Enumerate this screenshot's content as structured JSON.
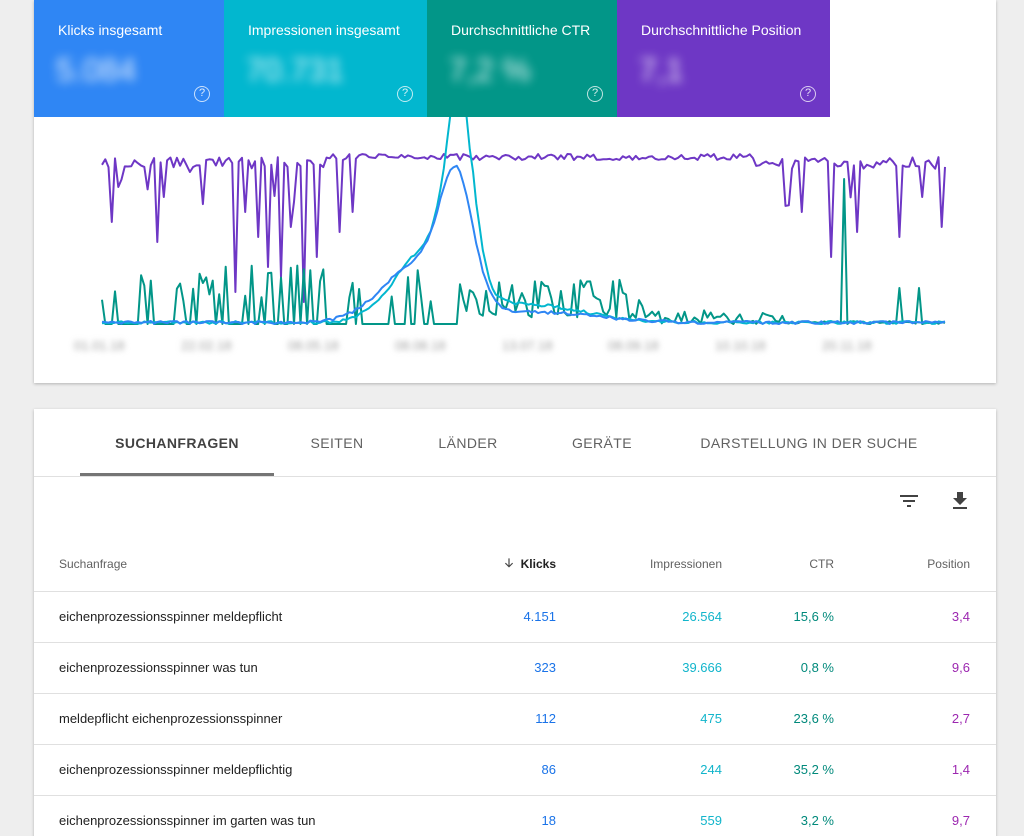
{
  "metrics": [
    {
      "label": "Klicks insgesamt",
      "value": "5.084",
      "color": "#2f86f4",
      "help": "?"
    },
    {
      "label": "Impressionen insgesamt",
      "value": "70.731",
      "color": "#02b7cf",
      "help": "?"
    },
    {
      "label": "Durchschnittliche CTR",
      "value": "7,2 %",
      "color": "#029688",
      "help": "?"
    },
    {
      "label": "Durchschnittliche Position",
      "value": "7,1",
      "color": "#6e37c5",
      "help": "?"
    }
  ],
  "chart_data": {
    "type": "line",
    "x_ticks": [
      "01.01.18",
      "22.02.18",
      "08.05.18",
      "08.08.18",
      "13.07.18",
      "08.09.18",
      "10.10.18",
      "20.11.18"
    ],
    "series": [
      {
        "name": "Position",
        "color": "#6e37c5"
      },
      {
        "name": "CTR",
        "color": "#029688"
      },
      {
        "name": "Impressionen",
        "color": "#02b7cf"
      },
      {
        "name": "Klicks",
        "color": "#2f86f4"
      }
    ]
  },
  "tabs": [
    "SUCHANFRAGEN",
    "SEITEN",
    "LÄNDER",
    "GERÄTE",
    "DARSTELLUNG IN DER SUCHE"
  ],
  "toolbar": {
    "filter_icon": "filter-icon",
    "download_icon": "download-icon"
  },
  "table": {
    "headers": {
      "query": "Suchanfrage",
      "clicks": "Klicks",
      "impressions": "Impressionen",
      "ctr": "CTR",
      "position": "Position"
    },
    "rows": [
      {
        "query": "eichenprozessionsspinner meldepflicht",
        "clicks": "4.151",
        "impressions": "26.564",
        "ctr": "15,6 %",
        "position": "3,4"
      },
      {
        "query": "eichenprozessionsspinner was tun",
        "clicks": "323",
        "impressions": "39.666",
        "ctr": "0,8 %",
        "position": "9,6"
      },
      {
        "query": "meldepflicht eichenprozessionsspinner",
        "clicks": "112",
        "impressions": "475",
        "ctr": "23,6 %",
        "position": "2,7"
      },
      {
        "query": "eichenprozessionsspinner meldepflichtig",
        "clicks": "86",
        "impressions": "244",
        "ctr": "35,2 %",
        "position": "1,4"
      },
      {
        "query": "eichenprozessionsspinner im garten was tun",
        "clicks": "18",
        "impressions": "559",
        "ctr": "3,2 %",
        "position": "9,7"
      }
    ]
  }
}
